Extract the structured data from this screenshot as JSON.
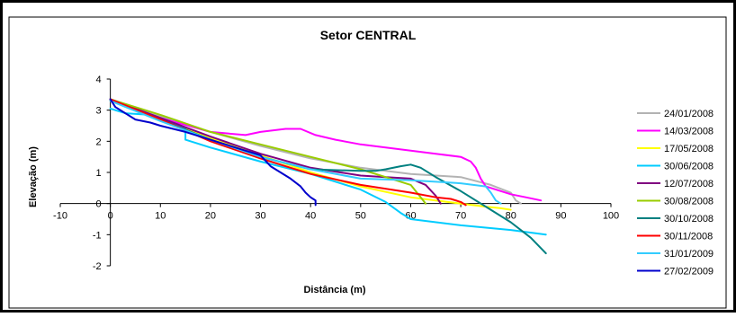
{
  "chart_data": {
    "type": "line",
    "title": "Setor CENTRAL",
    "xlabel": "Distância (m)",
    "ylabel": "Elevação (m)",
    "xlim": [
      -10,
      100
    ],
    "ylim": [
      -2,
      4
    ],
    "x_ticks": [
      "-10",
      "0",
      "10",
      "20",
      "30",
      "40",
      "50",
      "60",
      "70",
      "80",
      "90",
      "100"
    ],
    "y_ticks": [
      "-2",
      "-1",
      "0",
      "1",
      "2",
      "3",
      "4"
    ],
    "grid": false,
    "legend_position": "right",
    "series": [
      {
        "name": "24/01/2008",
        "color": "#b3b3b3",
        "x": [
          0,
          10,
          20,
          30,
          40,
          50,
          60,
          70,
          76,
          80,
          81,
          82
        ],
        "y": [
          3.3,
          2.8,
          2.3,
          1.85,
          1.45,
          1.15,
          0.95,
          0.85,
          0.6,
          0.35,
          0.1,
          0.0
        ]
      },
      {
        "name": "14/03/2008",
        "color": "#ff00ff",
        "x": [
          0,
          10,
          20,
          27,
          30,
          35,
          38,
          41,
          45,
          50,
          55,
          60,
          65,
          70,
          72,
          73,
          74,
          75,
          78,
          80,
          83,
          86
        ],
        "y": [
          3.3,
          2.75,
          2.3,
          2.2,
          2.3,
          2.4,
          2.4,
          2.2,
          2.05,
          1.9,
          1.8,
          1.7,
          1.6,
          1.5,
          1.35,
          1.15,
          0.8,
          0.55,
          0.4,
          0.3,
          0.2,
          0.1
        ]
      },
      {
        "name": "17/05/2008",
        "color": "#ffff00",
        "x": [
          0,
          10,
          20,
          30,
          40,
          50,
          60,
          70,
          75,
          78,
          80
        ],
        "y": [
          3.3,
          2.7,
          2.1,
          1.55,
          1.0,
          0.55,
          0.2,
          0.0,
          -0.1,
          -0.15,
          -0.2
        ]
      },
      {
        "name": "30/06/2008",
        "color": "#00ccff",
        "x": [
          0,
          3,
          8,
          12,
          15,
          15,
          20,
          30,
          40,
          50,
          55,
          58,
          60,
          70,
          80,
          87
        ],
        "y": [
          3.05,
          2.9,
          2.85,
          2.6,
          2.4,
          2.05,
          1.8,
          1.35,
          0.95,
          0.45,
          0.05,
          -0.3,
          -0.5,
          -0.7,
          -0.85,
          -1.0
        ]
      },
      {
        "name": "12/07/2008",
        "color": "#800080",
        "x": [
          0,
          10,
          20,
          30,
          40,
          50,
          55,
          60,
          63,
          65,
          66
        ],
        "y": [
          3.35,
          2.75,
          2.15,
          1.6,
          1.15,
          0.9,
          0.85,
          0.8,
          0.6,
          0.25,
          0.0
        ]
      },
      {
        "name": "30/08/2008",
        "color": "#99cc00",
        "x": [
          0,
          10,
          20,
          30,
          40,
          50,
          55,
          60,
          62,
          63
        ],
        "y": [
          3.35,
          2.85,
          2.3,
          1.9,
          1.5,
          1.1,
          0.85,
          0.6,
          0.2,
          0.0
        ]
      },
      {
        "name": "30/10/2008",
        "color": "#008080",
        "x": [
          0,
          10,
          20,
          30,
          40,
          50,
          53,
          55,
          58,
          60,
          62,
          65,
          70,
          75,
          80,
          84,
          87
        ],
        "y": [
          3.35,
          2.7,
          2.05,
          1.5,
          1.1,
          1.05,
          1.05,
          1.1,
          1.2,
          1.25,
          1.15,
          0.85,
          0.4,
          -0.1,
          -0.6,
          -1.1,
          -1.6
        ]
      },
      {
        "name": "30/11/2008",
        "color": "#ff0000",
        "x": [
          0,
          10,
          20,
          30,
          40,
          50,
          60,
          65,
          68,
          70,
          71
        ],
        "y": [
          3.35,
          2.7,
          2.0,
          1.45,
          0.95,
          0.6,
          0.35,
          0.2,
          0.15,
          0.05,
          -0.05
        ]
      },
      {
        "name": "31/01/2009",
        "color": "#33ccff",
        "x": [
          0,
          10,
          20,
          30,
          40,
          50,
          60,
          65,
          70,
          75,
          76,
          77,
          78
        ],
        "y": [
          3.3,
          2.65,
          2.05,
          1.5,
          1.1,
          0.8,
          0.75,
          0.7,
          0.65,
          0.55,
          0.35,
          0.1,
          0.0
        ]
      },
      {
        "name": "27/02/2009",
        "color": "#0000cc",
        "x": [
          0,
          1,
          3,
          5,
          8,
          10,
          15,
          20,
          25,
          30,
          32,
          34,
          36,
          38,
          39,
          40,
          40.5,
          41,
          41
        ],
        "y": [
          3.35,
          3.1,
          2.9,
          2.7,
          2.6,
          2.5,
          2.3,
          2.05,
          1.8,
          1.55,
          1.2,
          1.0,
          0.8,
          0.55,
          0.35,
          0.2,
          0.15,
          0.1,
          -0.05
        ]
      }
    ]
  }
}
